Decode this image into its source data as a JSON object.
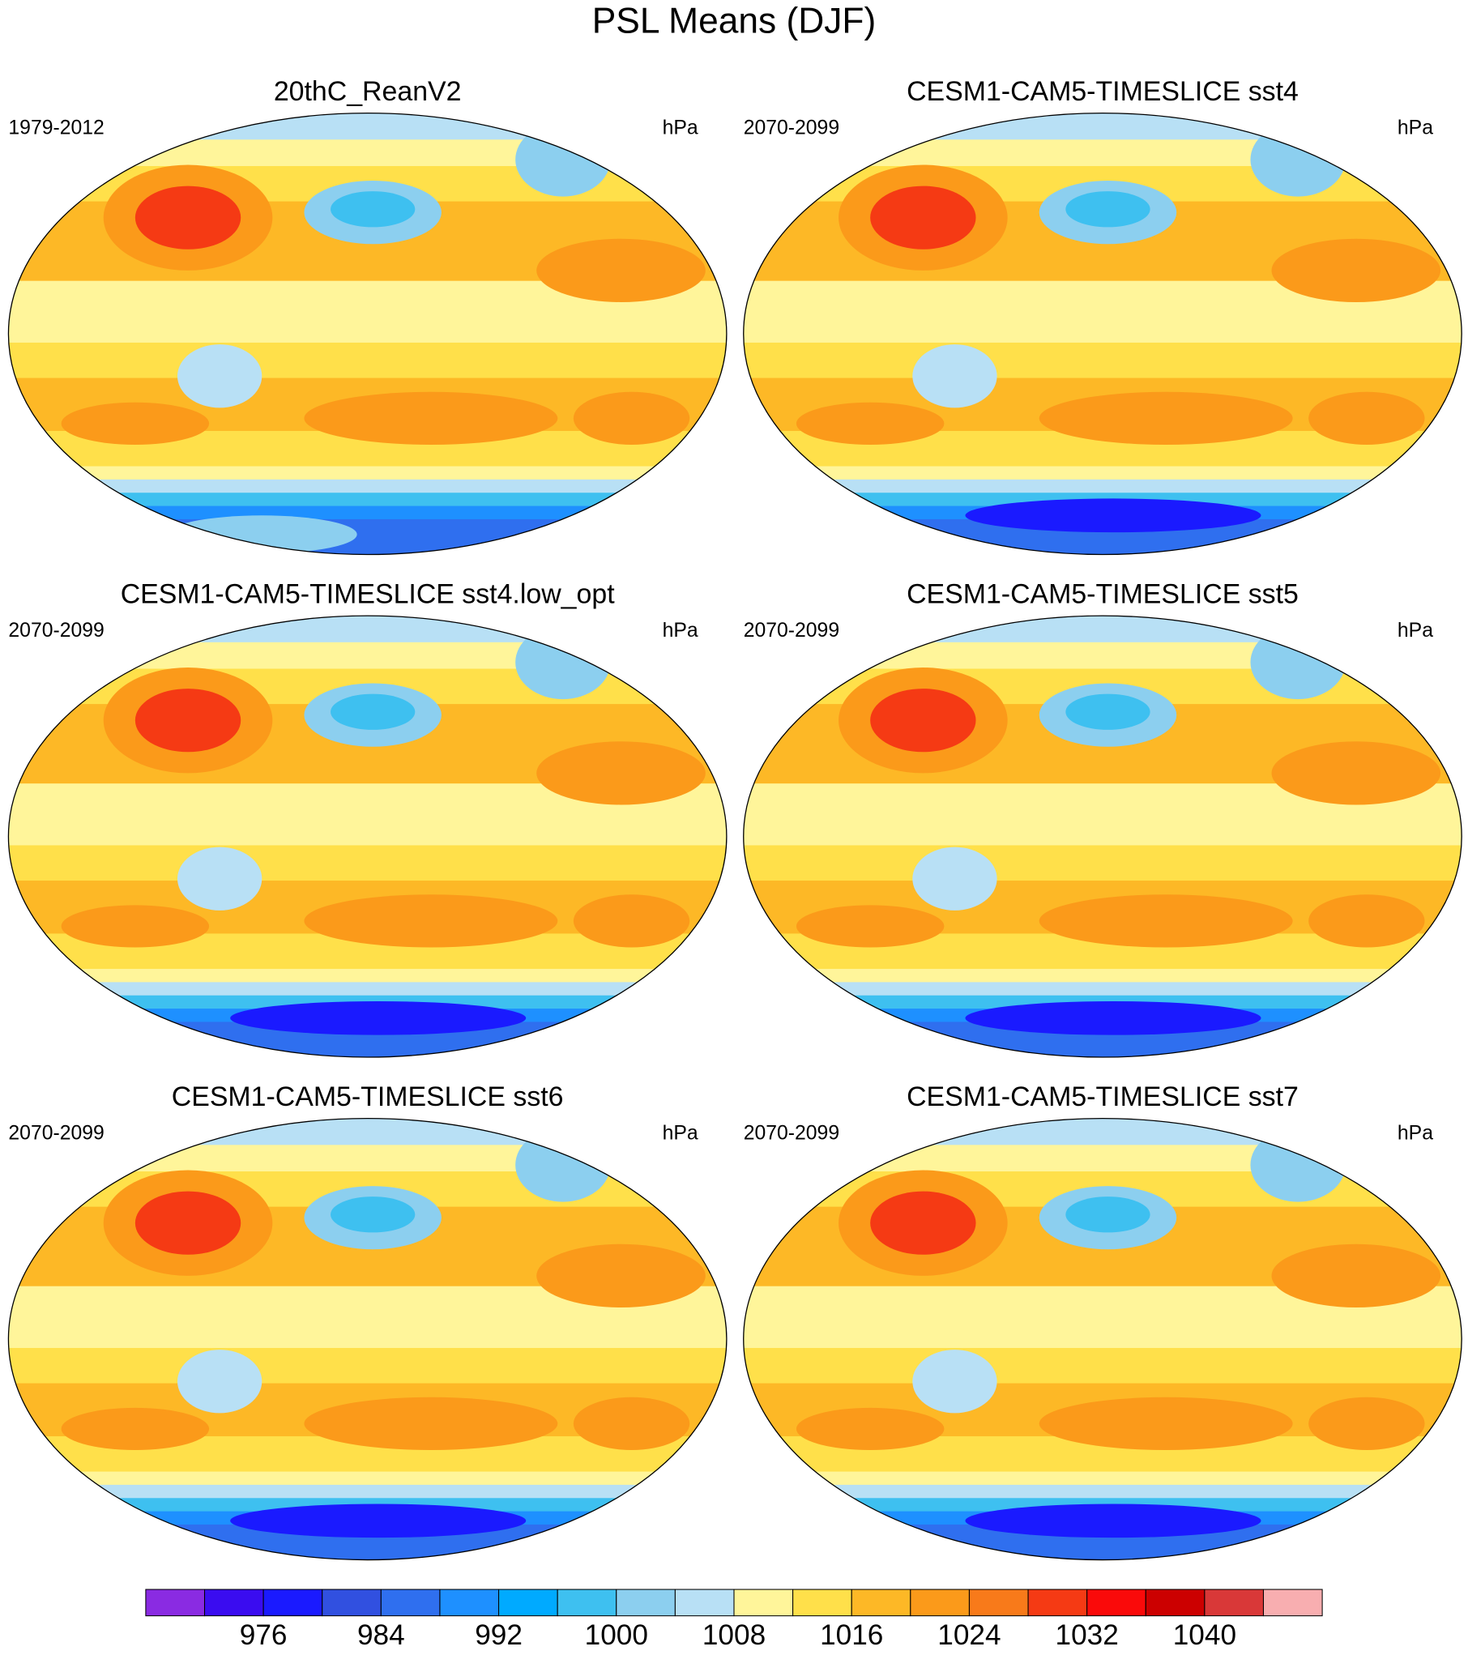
{
  "title": "PSL Means (DJF)",
  "panels": [
    {
      "title": "20thC_ReanV2",
      "period": "1979-2012",
      "units": "hPa"
    },
    {
      "title": "CESM1-CAM5-TIMESLICE sst4",
      "period": "2070-2099",
      "units": "hPa"
    },
    {
      "title": "CESM1-CAM5-TIMESLICE sst4.low_opt",
      "period": "2070-2099",
      "units": "hPa"
    },
    {
      "title": "CESM1-CAM5-TIMESLICE sst5",
      "period": "2070-2099",
      "units": "hPa"
    },
    {
      "title": "CESM1-CAM5-TIMESLICE sst6",
      "period": "2070-2099",
      "units": "hPa"
    },
    {
      "title": "CESM1-CAM5-TIMESLICE sst7",
      "period": "2070-2099",
      "units": "hPa"
    }
  ],
  "colorbar": {
    "colors": [
      "#8a2be2",
      "#3a0cf0",
      "#1a1aff",
      "#3150e0",
      "#2f6fef",
      "#1e90ff",
      "#00aaff",
      "#3ec0f0",
      "#8ccfef",
      "#b8e0f5",
      "#fff59a",
      "#ffe04a",
      "#fdb826",
      "#fb9a1a",
      "#f87a1a",
      "#f53a14",
      "#fa0a0a",
      "#cc0000",
      "#d93838",
      "#f8aeb0"
    ],
    "ticks": [
      976,
      984,
      992,
      1000,
      1008,
      1016,
      1024,
      1032,
      1040
    ]
  }
}
